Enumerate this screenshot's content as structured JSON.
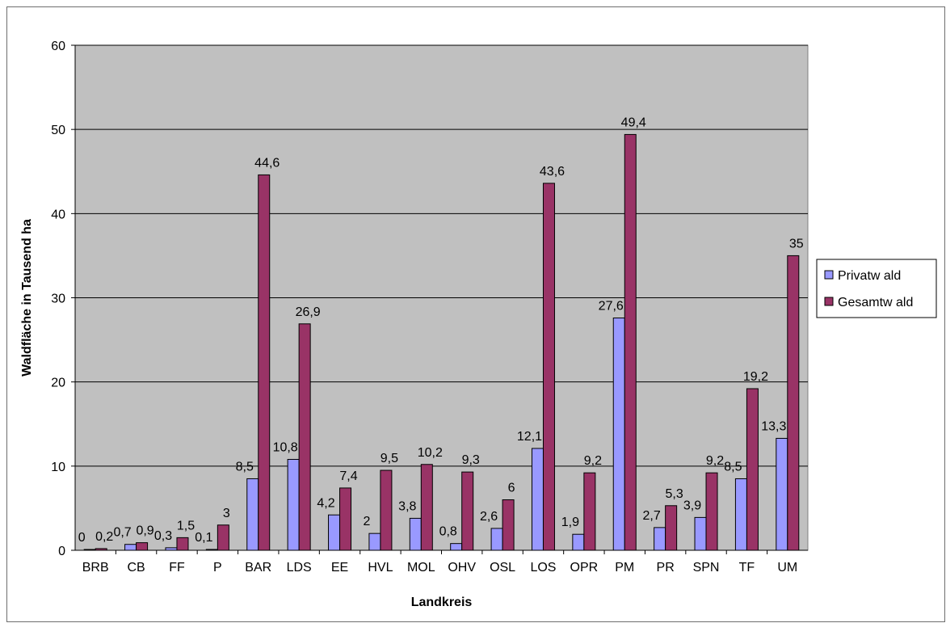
{
  "chart_data": {
    "type": "bar",
    "title": "",
    "xlabel": "Landkreis",
    "ylabel": "Waldfläche in Tausend ha",
    "ylim": [
      0,
      60
    ],
    "yticks": [
      "0",
      "10",
      "20",
      "30",
      "40",
      "50",
      "60"
    ],
    "grid": true,
    "legend_position": "right",
    "colors": {
      "plot_bg": "#c0c0c0",
      "Privatwald": "#9999ff",
      "Gesamtwald": "#993366"
    },
    "categories": [
      "BRB",
      "CB",
      "FF",
      "P",
      "BAR",
      "LDS",
      "EE",
      "HVL",
      "MOL",
      "OHV",
      "OSL",
      "LOS",
      "OPR",
      "PM",
      "PR",
      "SPN",
      "TF",
      "UM"
    ],
    "series": [
      {
        "name": "Privatw ald",
        "values": [
          0,
          0.7,
          0.3,
          0.1,
          8.5,
          10.8,
          4.2,
          2,
          3.8,
          0.8,
          2.6,
          12.1,
          1.9,
          27.6,
          2.7,
          3.9,
          8.5,
          13.3
        ],
        "labels": [
          "0",
          "0,7",
          "0,3",
          "0,1",
          "8,5",
          "10,8",
          "4,2",
          "2",
          "3,8",
          "0,8",
          "2,6",
          "12,1",
          "1,9",
          "27,6",
          "2,7",
          "3,9",
          "8,5",
          "13,3"
        ]
      },
      {
        "name": "Gesamtw ald",
        "values": [
          0.2,
          0.9,
          1.5,
          3,
          44.6,
          26.9,
          7.4,
          9.5,
          10.2,
          9.3,
          6,
          43.6,
          9.2,
          49.4,
          5.3,
          9.2,
          19.2,
          35
        ],
        "labels": [
          "0,2",
          "0,9",
          "1,5",
          "3",
          "44,6",
          "26,9",
          "7,4",
          "9,5",
          "10,2",
          "9,3",
          "6",
          "43,6",
          "9,2",
          "49,4",
          "5,3",
          "9,2",
          "19,2",
          "35"
        ]
      }
    ]
  }
}
